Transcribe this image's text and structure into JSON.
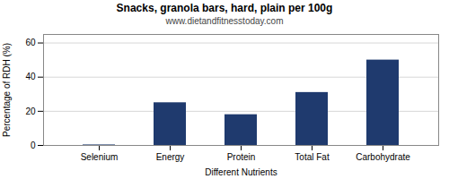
{
  "chart_data": {
    "type": "bar",
    "title": "Snacks, granola bars, hard, plain per 100g",
    "subtitle": "www.dietandfitnesstoday.com",
    "xlabel": "Different Nutrients",
    "ylabel": "Percentage of RDH (%)",
    "categories": [
      "Selenium",
      "Energy",
      "Protein",
      "Total Fat",
      "Carbohydrate"
    ],
    "values": [
      0.3,
      25,
      18,
      31,
      50
    ],
    "color": "#1f3a6e",
    "ylim": [
      0,
      65
    ],
    "yticks": [
      0,
      20,
      40,
      60
    ],
    "grid": true
  }
}
